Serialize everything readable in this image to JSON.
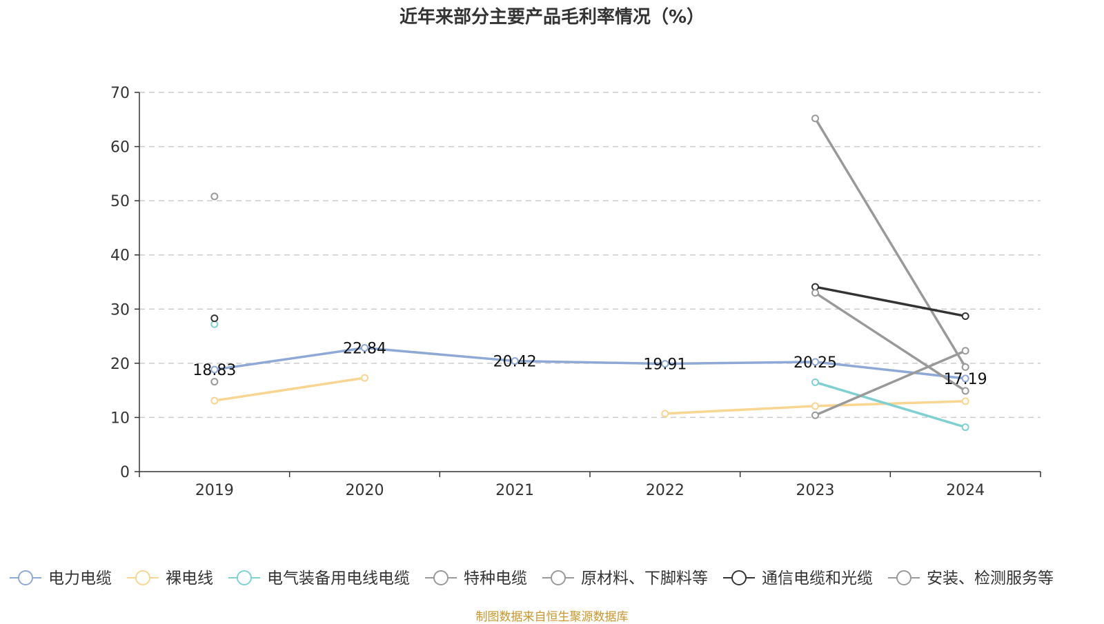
{
  "chart_data": {
    "type": "line",
    "title": "近年来部分主要产品毛利率情况（%）",
    "xlabel": "",
    "ylabel": "",
    "categories": [
      "2019",
      "2020",
      "2021",
      "2022",
      "2023",
      "2024"
    ],
    "ylim": [
      0,
      70
    ],
    "yticks": [
      0,
      10,
      20,
      30,
      40,
      50,
      60,
      70
    ],
    "grid": true,
    "legend_position": "bottom",
    "series": [
      {
        "name": "电力电缆",
        "color": "#8fa9d6",
        "values": [
          18.83,
          22.84,
          20.42,
          19.91,
          20.25,
          17.19
        ],
        "labels": [
          "18.83",
          "22.84",
          "20.42",
          "19.91",
          "20.25",
          "17.19"
        ]
      },
      {
        "name": "裸电线",
        "color": "#f8d591",
        "values": [
          13.1,
          17.3,
          null,
          10.7,
          12.1,
          13.0
        ]
      },
      {
        "name": "电气装备用电线电缆",
        "color": "#7fd0d0",
        "values": [
          27.2,
          null,
          null,
          null,
          16.5,
          8.2
        ]
      },
      {
        "name": "特种电缆",
        "color": "#999999",
        "values": [
          16.6,
          null,
          null,
          null,
          10.4,
          22.3
        ]
      },
      {
        "name": "原材料、下脚料等",
        "color": "#999999",
        "values": [
          50.8,
          null,
          null,
          null,
          65.2,
          19.3
        ]
      },
      {
        "name": "通信电缆和光缆",
        "color": "#333333",
        "values": [
          28.3,
          null,
          null,
          null,
          34.1,
          28.7
        ]
      },
      {
        "name": "安装、检测服务等",
        "color": "#999999",
        "values": [
          null,
          null,
          null,
          null,
          33.0,
          14.9
        ]
      }
    ]
  },
  "source_note": "制图数据来自恒生聚源数据库"
}
